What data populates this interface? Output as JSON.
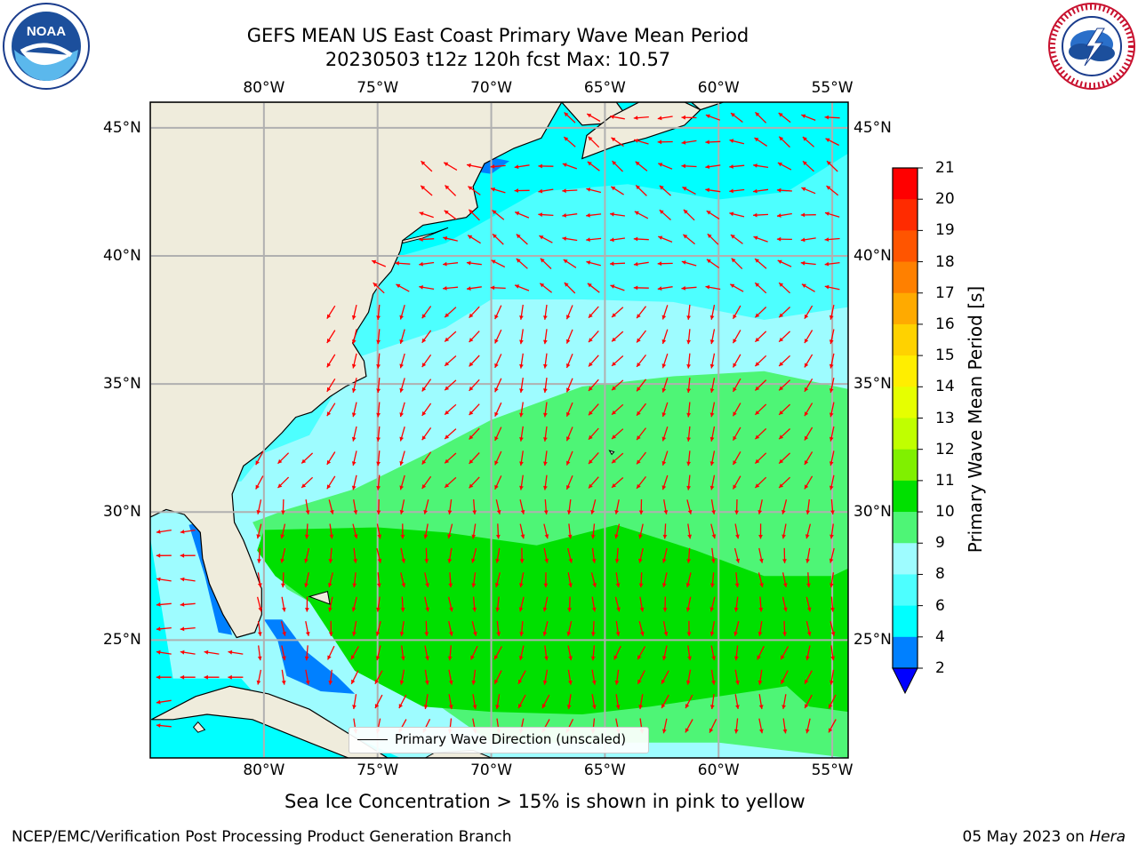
{
  "title": {
    "line1": "GEFS MEAN US East Coast Primary Wave Mean Period",
    "line2": "20230503 t12z 120h fcst   Max: 10.57"
  },
  "logos": {
    "noaa": {
      "icon": "noaa-logo",
      "text": "NOAA",
      "ring_text": "NATIONAL OCEANIC AND ATMOSPHERIC ADMINISTRATION · U.S. DEPARTMENT OF COMMERCE"
    },
    "nws": {
      "icon": "nws-logo",
      "ring_text": "NATIONAL WEATHER SERVICE"
    }
  },
  "map": {
    "projection": "lat-lon",
    "lon_range": [
      -85,
      -54.3
    ],
    "lat_range": [
      20.4,
      46
    ],
    "lon_ticks": [
      "80°W",
      "75°W",
      "70°W",
      "65°W",
      "60°W",
      "55°W"
    ],
    "lat_ticks": [
      "45°N",
      "40°N",
      "35°N",
      "30°N",
      "25°N"
    ],
    "grid": true,
    "land_color": "#efecdc",
    "arrow_color": "#ff0000"
  },
  "colorbar": {
    "label": "Primary Wave Mean Period [s]",
    "levels": [
      "21",
      "20",
      "19",
      "18",
      "17",
      "16",
      "15",
      "14",
      "13",
      "12",
      "11",
      "10",
      "9",
      "8",
      "6",
      "4",
      "2"
    ],
    "colors": [
      "#ff0000",
      "#ff2b00",
      "#ff5500",
      "#ff8000",
      "#ffaa00",
      "#ffd200",
      "#ffee00",
      "#e6ff00",
      "#c0ff00",
      "#80f000",
      "#00e000",
      "#4ef576",
      "#9efcff",
      "#4dffff",
      "#00ffff",
      "#0080ff"
    ],
    "extend_color": "#0000ff"
  },
  "legend": {
    "label": "Primary Wave Direction (unscaled)"
  },
  "caption": "Sea Ice Concentration > 15% is shown in pink to yellow",
  "footer": {
    "left": "NCEP/EMC/Verification Post Processing Product Generation Branch",
    "date": "05 May 2023 on ",
    "host": "Hera"
  }
}
